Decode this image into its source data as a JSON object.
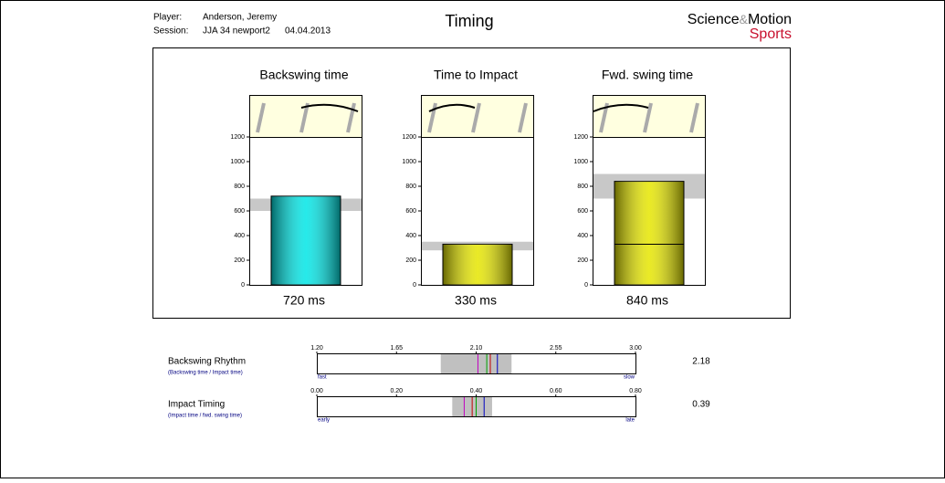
{
  "header": {
    "player_label": "Player:",
    "player": "Anderson, Jeremy",
    "session_label": "Session:",
    "session": "JJA 34 newport2",
    "date": "04.04.2013",
    "title": "Timing",
    "brand_a": "Science",
    "brand_amp": "&",
    "brand_b": "Motion",
    "brand_c": "Sports"
  },
  "chart_data": [
    {
      "type": "bar",
      "title": "Backswing time",
      "values": [
        720
      ],
      "value_labels": [
        "720 ms"
      ],
      "color": "#00e6e6",
      "ylim": [
        0,
        1200
      ],
      "yticks": [
        0,
        200,
        400,
        600,
        800,
        1000,
        1200
      ],
      "band": [
        600,
        700
      ]
    },
    {
      "type": "bar",
      "title": "Time to Impact",
      "values": [
        330
      ],
      "value_labels": [
        "330 ms"
      ],
      "color": "#e6e600",
      "ylim": [
        0,
        1200
      ],
      "yticks": [
        0,
        200,
        400,
        600,
        800,
        1000,
        1200
      ],
      "band": [
        280,
        350
      ]
    },
    {
      "type": "bar",
      "title": "Fwd. swing time",
      "values": [
        840
      ],
      "value_labels": [
        "840 ms"
      ],
      "color": "#e6e600",
      "ylim": [
        0,
        1200
      ],
      "yticks": [
        0,
        200,
        400,
        600,
        800,
        1000,
        1200
      ],
      "band": [
        700,
        900
      ],
      "reference_line": 330
    },
    {
      "type": "gauge",
      "title": "Backswing Rhythm",
      "subtitle": "(Backswing time / Impact time)",
      "xlim": [
        1.2,
        3.0
      ],
      "xticks": [
        {
          "value": 1.2,
          "label": "1.20"
        },
        1.65,
        {
          "value": 2.1,
          "label": "2.10"
        },
        2.55,
        {
          "value": 3.0,
          "label": "3.00"
        }
      ],
      "low_label": "fast",
      "high_label": "slow",
      "band": [
        1.9,
        2.3
      ],
      "markers": [
        {
          "value": 2.11,
          "color": "#c000c0"
        },
        {
          "value": 2.16,
          "color": "#00a000"
        },
        {
          "value": 2.22,
          "color": "#0000c0"
        }
      ],
      "value": 2.18,
      "value_color": "#c00000"
    },
    {
      "type": "gauge",
      "title": "Impact Timing",
      "subtitle": "(Impact time / fwd. swing time)",
      "xlim": [
        0,
        0.8
      ],
      "xticks": [
        {
          "value": 0,
          "label": "0.00"
        },
        {
          "value": 0.2,
          "label": "0.20"
        },
        {
          "value": 0.4,
          "label": "0.40"
        },
        {
          "value": 0.6,
          "label": "0.60"
        },
        {
          "value": 0.8,
          "label": "0.80"
        }
      ],
      "low_label": "early",
      "high_label": "late",
      "band": [
        0.34,
        0.44
      ],
      "markers": [
        {
          "value": 0.37,
          "color": "#c000c0"
        },
        {
          "value": 0.4,
          "color": "#00a000"
        },
        {
          "value": 0.42,
          "color": "#0000c0"
        }
      ],
      "value": 0.39,
      "value_color": "#c00000"
    }
  ]
}
